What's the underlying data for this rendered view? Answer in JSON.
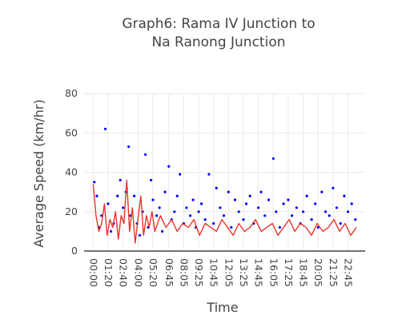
{
  "chart_data": {
    "type": "line",
    "title_lines": [
      "Graph6: Rama IV Junction to",
      "Na Ranong Junction"
    ],
    "xlabel": "Time",
    "ylabel": "Average Speed (km/hr)",
    "ylim": [
      0,
      80
    ],
    "y_ticks": [
      0,
      20,
      40,
      60,
      80
    ],
    "x_tick_labels": [
      "00:00",
      "01:20",
      "02:40",
      "04:00",
      "05:20",
      "06:45",
      "08:05",
      "09:25",
      "10:45",
      "12:05",
      "13:25",
      "14:45",
      "16:05",
      "17:25",
      "18:45",
      "20:05",
      "21:25",
      "22:45"
    ],
    "grid": true,
    "legend": false,
    "series": [
      {
        "mode": "scatter",
        "color": "#0000ff",
        "x": [
          "00:06",
          "00:20",
          "00:30",
          "00:45",
          "01:05",
          "01:20",
          "01:35",
          "01:50",
          "02:10",
          "02:25",
          "02:40",
          "02:55",
          "03:10",
          "03:20",
          "03:40",
          "03:55",
          "04:10",
          "04:25",
          "04:40",
          "04:55",
          "05:10",
          "05:20",
          "05:40",
          "05:55",
          "06:10",
          "06:25",
          "06:45",
          "07:00",
          "07:15",
          "07:30",
          "07:45",
          "08:05",
          "08:20",
          "08:40",
          "08:55",
          "09:10",
          "09:25",
          "09:40",
          "10:00",
          "10:20",
          "10:45",
          "11:00",
          "11:20",
          "11:40",
          "12:05",
          "12:20",
          "12:40",
          "13:00",
          "13:25",
          "13:40",
          "14:00",
          "14:20",
          "14:45",
          "15:00",
          "15:20",
          "15:40",
          "16:05",
          "16:20",
          "16:40",
          "17:00",
          "17:25",
          "17:45",
          "18:10",
          "18:30",
          "18:45",
          "19:05",
          "19:30",
          "19:50",
          "20:05",
          "20:25",
          "20:45",
          "21:05",
          "21:25",
          "21:45",
          "22:05",
          "22:25",
          "22:45",
          "23:05",
          "23:25"
        ],
        "values": [
          35,
          28,
          12,
          18,
          62,
          24,
          10,
          14,
          28,
          36,
          22,
          30,
          53,
          18,
          28,
          14,
          8,
          20,
          49,
          12,
          36,
          26,
          18,
          22,
          10,
          30,
          43,
          16,
          20,
          28,
          39,
          14,
          22,
          18,
          26,
          12,
          20,
          24,
          16,
          39,
          14,
          32,
          22,
          18,
          30,
          12,
          26,
          20,
          16,
          24,
          28,
          14,
          22,
          30,
          18,
          26,
          47,
          20,
          12,
          24,
          26,
          18,
          22,
          14,
          20,
          28,
          16,
          24,
          12,
          30,
          20,
          18,
          32,
          22,
          14,
          28,
          20,
          24,
          16
        ]
      },
      {
        "mode": "line",
        "color": "#e8332a",
        "x": [
          "00:00",
          "00:15",
          "00:30",
          "00:45",
          "01:00",
          "01:15",
          "01:30",
          "01:45",
          "02:00",
          "02:15",
          "02:30",
          "02:45",
          "03:00",
          "03:15",
          "03:30",
          "03:45",
          "04:00",
          "04:15",
          "04:30",
          "04:45",
          "05:00",
          "05:15",
          "05:30",
          "05:45",
          "06:00",
          "06:30",
          "07:00",
          "07:30",
          "08:00",
          "08:30",
          "09:00",
          "09:30",
          "10:00",
          "10:30",
          "11:00",
          "11:30",
          "12:00",
          "12:30",
          "13:00",
          "13:30",
          "14:00",
          "14:30",
          "15:00",
          "15:30",
          "16:00",
          "16:30",
          "17:00",
          "17:30",
          "18:00",
          "18:30",
          "19:00",
          "19:30",
          "20:00",
          "20:30",
          "21:00",
          "21:30",
          "22:00",
          "22:30",
          "23:00",
          "23:30"
        ],
        "values": [
          34,
          18,
          10,
          14,
          24,
          8,
          16,
          12,
          20,
          6,
          18,
          14,
          36,
          10,
          22,
          4,
          16,
          28,
          8,
          18,
          12,
          20,
          10,
          14,
          18,
          12,
          16,
          10,
          14,
          12,
          16,
          8,
          14,
          12,
          10,
          16,
          12,
          8,
          14,
          10,
          12,
          16,
          10,
          12,
          14,
          8,
          12,
          16,
          10,
          14,
          12,
          8,
          14,
          10,
          12,
          16,
          10,
          14,
          8,
          12
        ]
      }
    ]
  }
}
